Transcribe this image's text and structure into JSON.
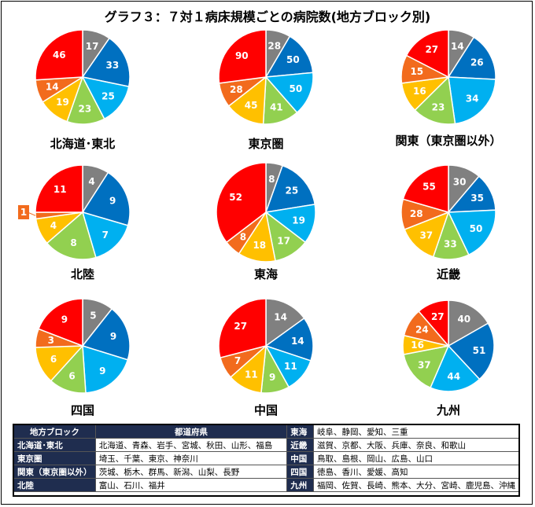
{
  "title": "グラフ３：７対１病床規模ごとの病院数(地方ブロック別)",
  "colors": [
    "#808080",
    "#0070c0",
    "#00b0f0",
    "#92d050",
    "#ffc000",
    "#f26b1d",
    "#ff0000"
  ],
  "chart_data": [
    {
      "type": "pie",
      "title": "北海道･東北",
      "values": [
        17,
        33,
        25,
        23,
        19,
        14,
        46
      ]
    },
    {
      "type": "pie",
      "title": "東京圏",
      "values": [
        28,
        50,
        50,
        41,
        45,
        28,
        90
      ]
    },
    {
      "type": "pie",
      "title": "関東（東京圏以外）",
      "values": [
        14,
        26,
        34,
        23,
        16,
        15,
        27
      ]
    },
    {
      "type": "pie",
      "title": "北陸",
      "values": [
        4,
        9,
        7,
        8,
        4,
        1,
        11
      ],
      "callout_index": 5
    },
    {
      "type": "pie",
      "title": "東海",
      "values": [
        8,
        25,
        19,
        17,
        18,
        8,
        52
      ]
    },
    {
      "type": "pie",
      "title": "近畿",
      "values": [
        30,
        35,
        50,
        33,
        37,
        28,
        55
      ]
    },
    {
      "type": "pie",
      "title": "四国",
      "values": [
        5,
        9,
        9,
        6,
        6,
        3,
        9
      ]
    },
    {
      "type": "pie",
      "title": "中国",
      "values": [
        14,
        14,
        11,
        9,
        11,
        7,
        27
      ]
    },
    {
      "type": "pie",
      "title": "九州",
      "values": [
        40,
        51,
        44,
        37,
        16,
        24,
        27
      ]
    }
  ],
  "table": {
    "headers": [
      "地方ブロック",
      "都道府県"
    ],
    "rows": [
      {
        "left_region": "北海道･東北",
        "left_prefs": "北海道、青森、岩手、宮城、秋田、山形、福島",
        "right_region": "東海",
        "right_prefs": "岐阜、静岡、愛知、三重"
      },
      {
        "left_region": "東京圏",
        "left_prefs": "埼玉、千葉、東京、神奈川",
        "right_region": "近畿",
        "right_prefs": "滋賀、京都、大阪、兵庫、奈良、和歌山"
      },
      {
        "left_region": "関東（東京圏以外）",
        "left_prefs": "茨城、栃木、群馬、新潟、山梨、長野",
        "right_region": "中国",
        "right_prefs": "鳥取、島根、岡山、広島、山口"
      },
      {
        "left_region": "北陸",
        "left_prefs": "富山、石川、福井",
        "right_region": "四国",
        "right_prefs": "徳島、香川、愛媛、高知"
      },
      {
        "left_region": "",
        "left_prefs": "",
        "right_region": "九州",
        "right_prefs": "福岡、佐賀、長崎、熊本、大分、宮崎、鹿児島、沖縄"
      }
    ]
  }
}
